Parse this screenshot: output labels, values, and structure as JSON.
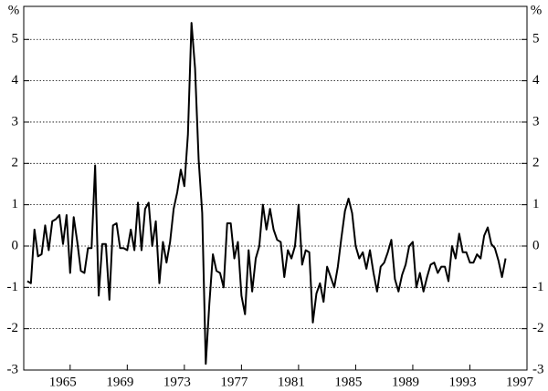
{
  "chart_data": {
    "type": "line",
    "y_label": "%",
    "x": [
      1962,
      1962.25,
      1962.5,
      1962.75,
      1963,
      1963.25,
      1963.5,
      1963.75,
      1964,
      1964.25,
      1964.5,
      1964.75,
      1965,
      1965.25,
      1965.5,
      1965.75,
      1966,
      1966.25,
      1966.5,
      1966.75,
      1967,
      1967.25,
      1967.5,
      1967.75,
      1968,
      1968.25,
      1968.5,
      1968.75,
      1969,
      1969.25,
      1969.5,
      1969.75,
      1970,
      1970.25,
      1970.5,
      1970.75,
      1971,
      1971.25,
      1971.5,
      1971.75,
      1972,
      1972.25,
      1972.5,
      1972.75,
      1973,
      1973.25,
      1973.5,
      1973.75,
      1974,
      1974.25,
      1974.5,
      1974.75,
      1975,
      1975.25,
      1975.5,
      1975.75,
      1976,
      1976.25,
      1976.5,
      1976.75,
      1977,
      1977.25,
      1977.5,
      1977.75,
      1978,
      1978.25,
      1978.5,
      1978.75,
      1979,
      1979.25,
      1979.5,
      1979.75,
      1980,
      1980.25,
      1980.5,
      1980.75,
      1981,
      1981.25,
      1981.5,
      1981.75,
      1982,
      1982.25,
      1982.5,
      1982.75,
      1983,
      1983.25,
      1983.5,
      1983.75,
      1984,
      1984.25,
      1984.5,
      1984.75,
      1985,
      1985.25,
      1985.5,
      1985.75,
      1986,
      1986.25,
      1986.5,
      1986.75,
      1987,
      1987.25,
      1987.5,
      1987.75,
      1988,
      1988.25,
      1988.5,
      1988.75,
      1989,
      1989.25,
      1989.5,
      1989.75,
      1990,
      1990.25,
      1990.5,
      1990.75,
      1991,
      1991.25,
      1991.5,
      1991.75,
      1992,
      1992.25,
      1992.5,
      1992.75,
      1993,
      1993.25,
      1993.5,
      1993.75,
      1994,
      1994.25,
      1994.5,
      1994.75,
      1995,
      1995.25,
      1995.5
    ],
    "series": [
      {
        "color": "#000000",
        "values": [
          -0.85,
          -0.9,
          0.4,
          -0.25,
          -0.2,
          0.5,
          -0.1,
          0.6,
          0.65,
          0.75,
          0.05,
          0.75,
          -0.65,
          0.7,
          0.1,
          -0.6,
          -0.65,
          -0.05,
          -0.05,
          1.95,
          -1.2,
          0.05,
          0.05,
          -1.3,
          0.5,
          0.55,
          -0.05,
          -0.05,
          -0.1,
          0.4,
          -0.1,
          1.05,
          -0.1,
          0.9,
          1.05,
          0.0,
          0.6,
          -0.9,
          0.1,
          -0.4,
          0.1,
          0.9,
          1.3,
          1.85,
          1.45,
          2.7,
          5.4,
          4.3,
          2.1,
          0.8,
          -2.85,
          -1.4,
          -0.2,
          -0.6,
          -0.65,
          -1.0,
          0.55,
          0.55,
          -0.3,
          0.1,
          -1.2,
          -1.65,
          -0.1,
          -1.1,
          -0.3,
          0.0,
          1.0,
          0.4,
          0.9,
          0.4,
          0.15,
          0.1,
          -0.75,
          -0.1,
          -0.3,
          0.0,
          1.0,
          -0.45,
          -0.1,
          -0.15,
          -1.85,
          -1.15,
          -0.9,
          -1.35,
          -0.5,
          -0.75,
          -1.0,
          -0.5,
          0.2,
          0.85,
          1.15,
          0.8,
          0.0,
          -0.3,
          -0.15,
          -0.55,
          -0.1,
          -0.65,
          -1.1,
          -0.5,
          -0.4,
          -0.15,
          0.15,
          -0.8,
          -1.1,
          -0.7,
          -0.45,
          0.0,
          0.1,
          -1.0,
          -0.65,
          -1.1,
          -0.75,
          -0.45,
          -0.4,
          -0.65,
          -0.5,
          -0.5,
          -0.85,
          0.0,
          -0.3,
          0.3,
          -0.15,
          -0.15,
          -0.4,
          -0.4,
          -0.2,
          -0.3,
          0.25,
          0.45,
          0.05,
          -0.05,
          -0.35,
          -0.75,
          -0.3
        ]
      }
    ],
    "xlim": [
      1961.75,
      1997
    ],
    "xticks": [
      1965,
      1969,
      1973,
      1977,
      1981,
      1985,
      1989,
      1993,
      1997
    ],
    "ylim": [
      -3,
      5.8
    ],
    "yticks": [
      -3,
      -2,
      -1,
      0,
      1,
      2,
      3,
      4,
      5
    ],
    "grid": true
  }
}
